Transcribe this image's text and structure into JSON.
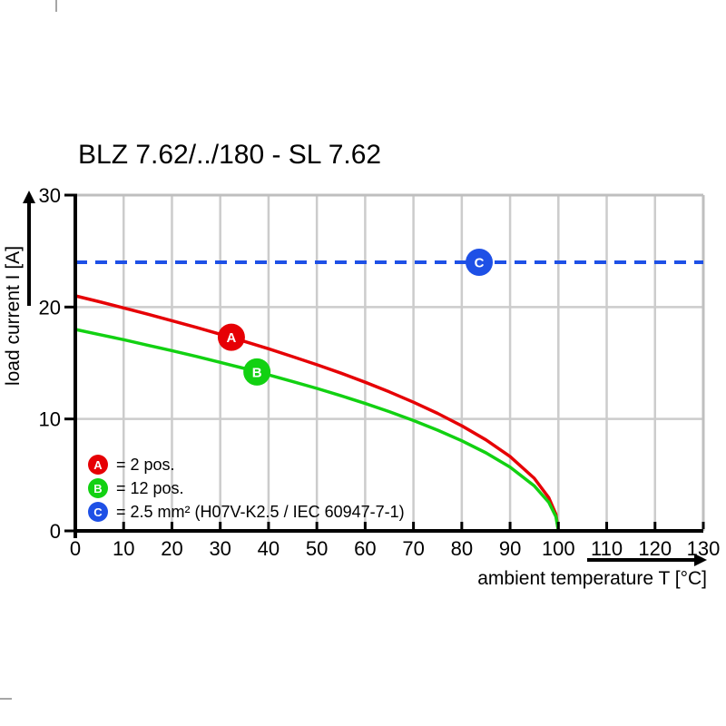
{
  "title": "BLZ 7.62/../180 - SL 7.62",
  "chart_data": {
    "type": "line",
    "title": "BLZ 7.62/../180 - SL 7.62",
    "xlabel": "ambient temperature T [°C]",
    "ylabel": "load current I [A]",
    "xlim": [
      0,
      130
    ],
    "ylim": [
      0,
      30
    ],
    "x_ticks": [
      0,
      10,
      20,
      30,
      40,
      50,
      60,
      70,
      80,
      90,
      100,
      110,
      120,
      130
    ],
    "y_ticks": [
      0,
      10,
      20,
      30
    ],
    "grid": true,
    "grid_color": "#cccccc",
    "border_color": "#bfbfbf",
    "axis_color": "#000000",
    "background": "#ffffff",
    "legend_position": "inside-bottom-left",
    "series": [
      {
        "name": "A",
        "legend_label": "= 2 pos.",
        "color": "#e60005",
        "style": "solid",
        "marker": {
          "letter": "A",
          "t": 32.3,
          "i": 17.3
        },
        "points": [
          [
            0,
            21
          ],
          [
            5,
            20.47
          ],
          [
            10,
            19.92
          ],
          [
            15,
            19.36
          ],
          [
            20,
            18.78
          ],
          [
            25,
            18.19
          ],
          [
            30,
            17.57
          ],
          [
            35,
            16.93
          ],
          [
            40,
            16.27
          ],
          [
            45,
            15.57
          ],
          [
            50,
            14.85
          ],
          [
            55,
            14.09
          ],
          [
            60,
            13.28
          ],
          [
            65,
            12.42
          ],
          [
            70,
            11.5
          ],
          [
            75,
            10.5
          ],
          [
            80,
            9.39
          ],
          [
            85,
            8.13
          ],
          [
            90,
            6.64
          ],
          [
            95,
            4.7
          ],
          [
            98,
            2.97
          ],
          [
            99.5,
            1.48
          ],
          [
            100,
            0
          ]
        ]
      },
      {
        "name": "B",
        "legend_label": "= 12 pos.",
        "color": "#12d112",
        "style": "solid",
        "marker": {
          "letter": "B",
          "t": 37.6,
          "i": 14.2
        },
        "points": [
          [
            0,
            18
          ],
          [
            5,
            17.54
          ],
          [
            10,
            17.08
          ],
          [
            15,
            16.59
          ],
          [
            20,
            16.1
          ],
          [
            25,
            15.59
          ],
          [
            30,
            15.06
          ],
          [
            35,
            14.51
          ],
          [
            40,
            13.94
          ],
          [
            45,
            13.35
          ],
          [
            50,
            12.73
          ],
          [
            55,
            12.07
          ],
          [
            60,
            11.38
          ],
          [
            65,
            10.65
          ],
          [
            70,
            9.86
          ],
          [
            75,
            9
          ],
          [
            80,
            8.05
          ],
          [
            85,
            6.97
          ],
          [
            90,
            5.69
          ],
          [
            95,
            4.02
          ],
          [
            98,
            2.55
          ],
          [
            99.5,
            1.27
          ],
          [
            100,
            0
          ]
        ]
      },
      {
        "name": "C",
        "legend_label": "= 2.5 mm² (H07V-K2.5 / IEC 60947-7-1)",
        "color": "#1e50e6",
        "style": "dashed",
        "marker": {
          "letter": "C",
          "t": 83.6,
          "i": 24
        },
        "points": [
          [
            0,
            24
          ],
          [
            130,
            24
          ]
        ]
      }
    ]
  }
}
